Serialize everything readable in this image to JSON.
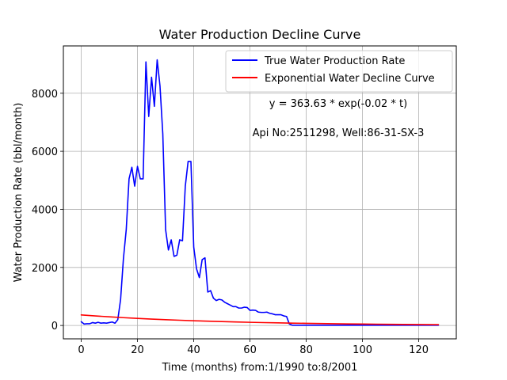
{
  "chart_data": {
    "type": "line",
    "title": "Water Production Decline Curve",
    "xlabel": "Time (months) from:1/1990 to:8/2001",
    "ylabel": "Water Production Rate (bbl/month)",
    "xlim": [
      -6.35,
      133.35
    ],
    "ylim": [
      -460,
      9630
    ],
    "xticks": [
      0,
      20,
      40,
      60,
      80,
      100,
      120
    ],
    "yticks": [
      0,
      2000,
      4000,
      6000,
      8000
    ],
    "grid": true,
    "legend_position": "upper right",
    "annotations": [
      "y = 363.63 * exp(-0.02 * t)",
      "Api No:2511298, Well:86-31-SX-3"
    ],
    "series": [
      {
        "name": "True Water Production Rate",
        "color": "#0000ff",
        "x": [
          0,
          1,
          2,
          3,
          4,
          5,
          6,
          7,
          8,
          9,
          10,
          11,
          12,
          13,
          14,
          15,
          16,
          17,
          18,
          19,
          20,
          21,
          22,
          23,
          24,
          25,
          26,
          27,
          28,
          29,
          30,
          31,
          32,
          33,
          34,
          35,
          36,
          37,
          38,
          39,
          40,
          41,
          42,
          43,
          44,
          45,
          46,
          47,
          48,
          49,
          50,
          51,
          52,
          53,
          54,
          55,
          56,
          57,
          58,
          59,
          60,
          61,
          62,
          63,
          64,
          65,
          66,
          67,
          68,
          69,
          70,
          71,
          72,
          73,
          74,
          75,
          76,
          77,
          78,
          79,
          80,
          81,
          82,
          83,
          84,
          85,
          86,
          87,
          88,
          89,
          90,
          91,
          92,
          93,
          94,
          95,
          96,
          97,
          98,
          99,
          100,
          101,
          102,
          103,
          104,
          105,
          106,
          107,
          108,
          109,
          110,
          111,
          112,
          113,
          114,
          115,
          116,
          117,
          118,
          119,
          120,
          121,
          122,
          123,
          124,
          125,
          126,
          127
        ],
        "y": [
          130,
          50,
          60,
          60,
          100,
          80,
          110,
          80,
          90,
          80,
          100,
          120,
          80,
          200,
          900,
          2300,
          3300,
          5050,
          5450,
          4800,
          5480,
          5050,
          5050,
          9080,
          7200,
          8550,
          7550,
          9150,
          8250,
          6600,
          3300,
          2600,
          2950,
          2380,
          2420,
          2950,
          2920,
          4800,
          5650,
          5650,
          2700,
          1950,
          1650,
          2270,
          2330,
          1150,
          1200,
          940,
          860,
          900,
          880,
          800,
          750,
          700,
          650,
          650,
          600,
          600,
          630,
          620,
          520,
          530,
          520,
          460,
          450,
          450,
          460,
          420,
          400,
          370,
          370,
          370,
          330,
          310,
          50,
          10,
          10,
          10,
          10,
          10,
          10,
          10,
          10,
          10,
          10,
          10,
          10,
          10,
          10,
          10,
          10,
          10,
          10,
          10,
          10,
          10,
          10,
          10,
          10,
          10,
          10,
          10,
          10,
          10,
          10,
          10,
          10,
          10,
          10,
          10,
          10,
          10,
          10,
          10,
          10,
          10,
          10,
          10,
          10,
          10,
          10,
          10,
          10,
          10,
          10,
          10,
          10,
          10
        ]
      },
      {
        "name": "Exponential Water Decline Curve",
        "color": "#ff0000",
        "formula": "363.63 * exp(-0.02 * t)",
        "x": [
          0,
          5,
          10,
          15,
          20,
          25,
          30,
          35,
          40,
          45,
          50,
          55,
          60,
          65,
          70,
          75,
          80,
          85,
          90,
          95,
          100,
          105,
          110,
          115,
          120,
          125,
          127
        ],
        "y": [
          363.63,
          329.0,
          297.7,
          269.4,
          243.8,
          220.5,
          199.6,
          180.6,
          163.4,
          147.8,
          133.8,
          121.0,
          109.5,
          99.1,
          89.7,
          81.1,
          73.4,
          66.4,
          60.1,
          54.4,
          49.2,
          44.5,
          40.3,
          36.5,
          33.0,
          29.8,
          28.7
        ]
      }
    ]
  }
}
